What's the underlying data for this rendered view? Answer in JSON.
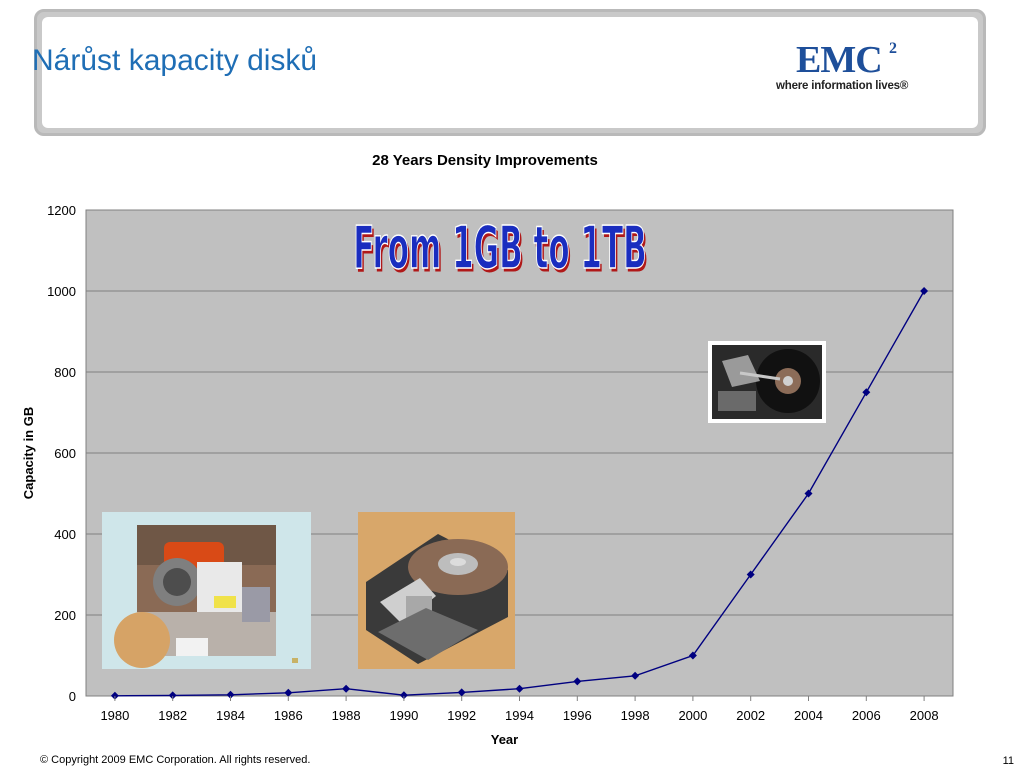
{
  "slide": {
    "title": "Nárůst kapacity disků",
    "logo_mark": "EMC",
    "logo_superscript": "2",
    "logo_tagline": "where information lives®",
    "copyright": "© Copyright 2009 EMC Corporation. All rights reserved.",
    "page_number": "11"
  },
  "chart_data": {
    "type": "line",
    "title": "28 Years Density Improvements",
    "xlabel": "Year",
    "ylabel": "Capacity in GB",
    "x": [
      "1980",
      "1982",
      "1984",
      "1986",
      "1988",
      "1990",
      "1992",
      "1994",
      "1996",
      "1998",
      "2000",
      "2002",
      "2004",
      "2006",
      "2008"
    ],
    "series": [
      {
        "values": [
          0.5,
          1.5,
          3,
          8,
          18,
          2,
          9,
          18,
          36,
          50,
          100,
          300,
          500,
          750,
          1000
        ]
      }
    ],
    "ylim": [
      0,
      1200
    ],
    "yticks": [
      0,
      200,
      400,
      600,
      800,
      1000,
      1200
    ],
    "grid": true,
    "legend": "none",
    "annotation": "From 1GB to 1TB",
    "colors": {
      "plot_background": "#c0c0c0",
      "line": "#000080",
      "marker": "#000080",
      "annotation_fill": "#1a2dbf",
      "annotation_shadow": "#b01818"
    }
  }
}
